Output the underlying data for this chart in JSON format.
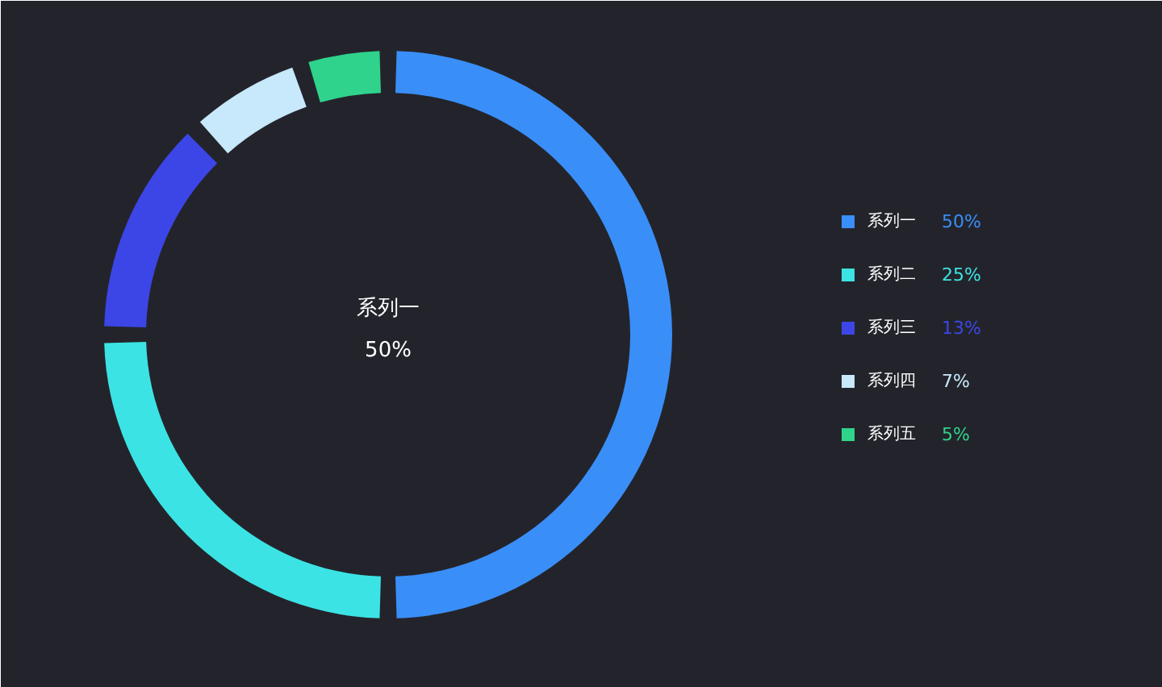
{
  "chart_data": {
    "type": "donut",
    "title": "系列一",
    "subtitle": "50%",
    "categories": [
      "系列一",
      "系列二",
      "系列三",
      "系列四",
      "系列五"
    ],
    "values": [
      50,
      25,
      13,
      7,
      5
    ],
    "colors": [
      "#3a8ef8",
      "#3ce3e4",
      "#3c46e6",
      "#c8e8fb",
      "#2fd38c"
    ],
    "value_labels": [
      "50%",
      "25%",
      "13%",
      "7%",
      "5%"
    ],
    "legend": "right"
  }
}
